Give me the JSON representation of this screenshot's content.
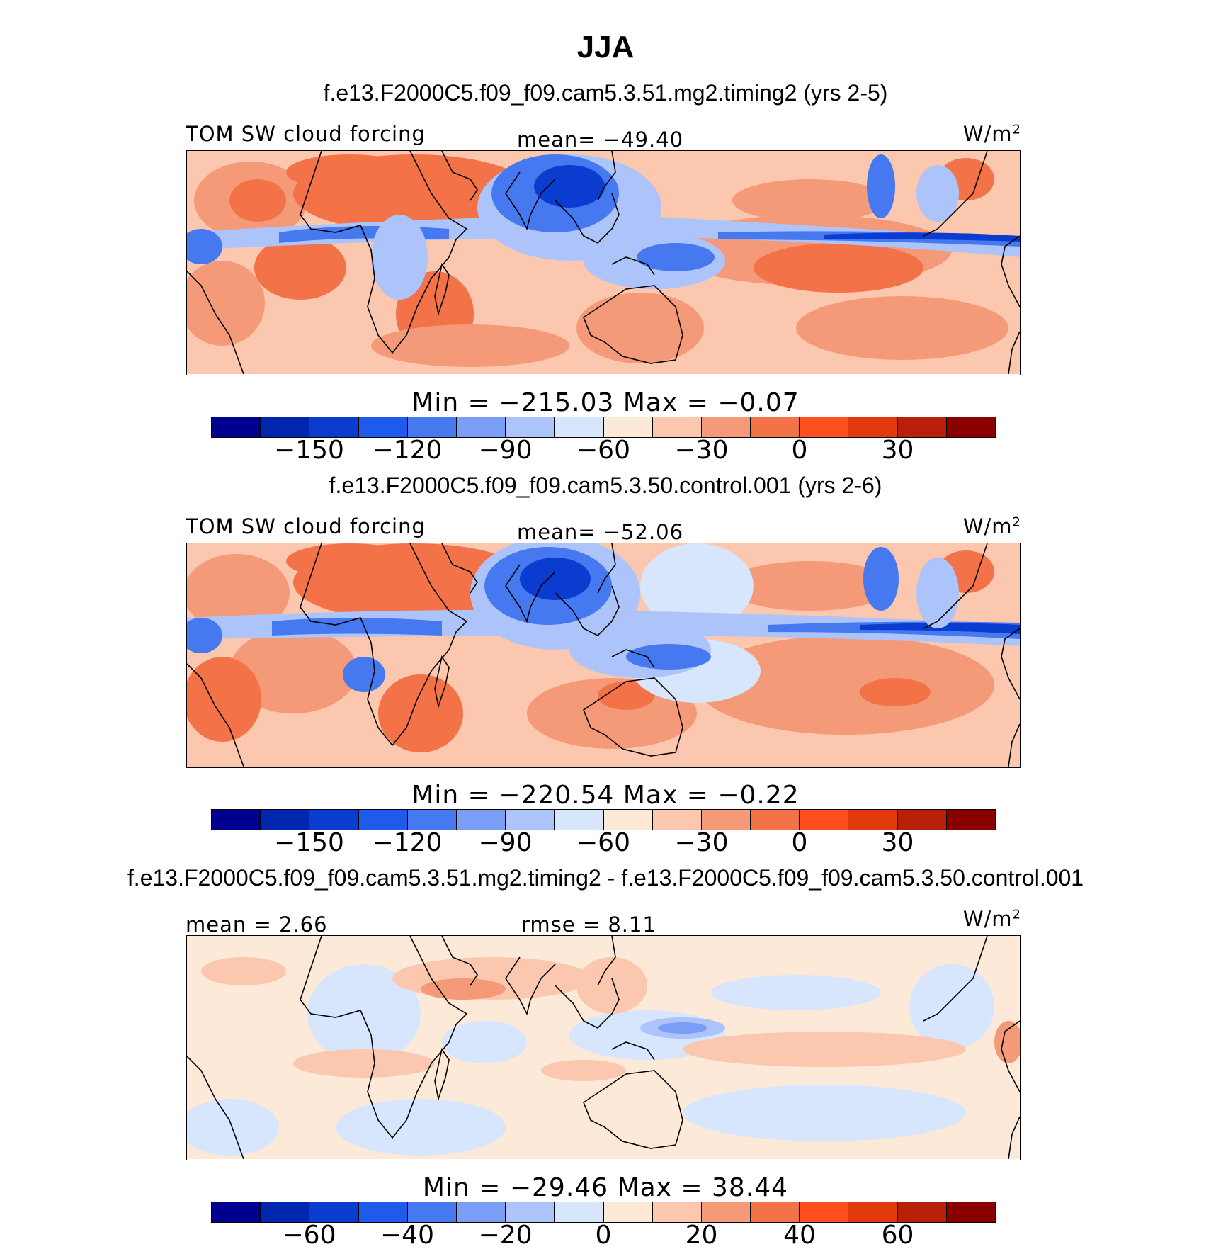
{
  "title": "JJA",
  "panels": [
    {
      "title": "f.e13.F2000C5.f09_f09.cam5.3.51.mg2.timing2 (yrs 2-5)",
      "left_label": "TOM SW cloud forcing",
      "center_label": "mean= −49.40",
      "units": "W/m",
      "units_sup": "2",
      "minmax": "Min  =  −215.03  Max  =    −0.07",
      "colorbar": {
        "colors": [
          "#00008e",
          "#0026b0",
          "#0a3ccf",
          "#1e5aeb",
          "#4678f0",
          "#7a9ef5",
          "#adc4fa",
          "#d7e6fd",
          "#fde9d8",
          "#fbc7ae",
          "#f49a78",
          "#f37248",
          "#ff4f1e",
          "#e23a0c",
          "#b8200a",
          "#8a0000"
        ],
        "ticks": [
          "−150",
          "−120",
          "−90",
          "−60",
          "−30",
          "0",
          "30"
        ]
      }
    },
    {
      "title": "f.e13.F2000C5.f09_f09.cam5.3.50.control.001 (yrs 2-6)",
      "left_label": "TOM SW cloud forcing",
      "center_label": "mean= −52.06",
      "units": "W/m",
      "units_sup": "2",
      "minmax": "Min  =  −220.54  Max  =    −0.22",
      "colorbar": {
        "colors": [
          "#00008e",
          "#0026b0",
          "#0a3ccf",
          "#1e5aeb",
          "#4678f0",
          "#7a9ef5",
          "#adc4fa",
          "#d7e6fd",
          "#fde9d8",
          "#fbc7ae",
          "#f49a78",
          "#f37248",
          "#ff4f1e",
          "#e23a0c",
          "#b8200a",
          "#8a0000"
        ],
        "ticks": [
          "−150",
          "−120",
          "−90",
          "−60",
          "−30",
          "0",
          "30"
        ]
      }
    },
    {
      "title": "f.e13.F2000C5.f09_f09.cam5.3.51.mg2.timing2 - f.e13.F2000C5.f09_f09.cam5.3.50.control.001",
      "left_label": "mean  =     2.66",
      "center_label": "rmse  =     8.11",
      "units": "W/m",
      "units_sup": "2",
      "minmax": "Min  =  −29.46  Max  =    38.44",
      "colorbar": {
        "colors": [
          "#00008e",
          "#0026b0",
          "#0a3ccf",
          "#1e5aeb",
          "#4678f0",
          "#7a9ef5",
          "#adc4fa",
          "#d7e6fd",
          "#fde9d8",
          "#fbc7ae",
          "#f49a78",
          "#f37248",
          "#ff4f1e",
          "#e23a0c",
          "#b8200a",
          "#8a0000"
        ],
        "ticks": [
          "−60",
          "−40",
          "−20",
          "0",
          "20",
          "40",
          "60"
        ]
      }
    }
  ]
}
